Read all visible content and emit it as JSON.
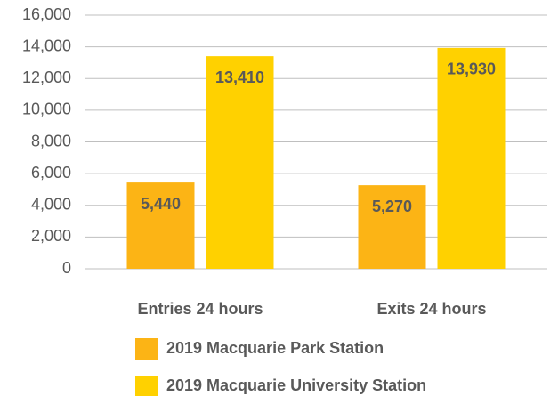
{
  "chart_data": {
    "type": "bar",
    "categories": [
      "Entries 24 hours",
      "Exits 24 hours"
    ],
    "series": [
      {
        "name": "2019 Macquarie Park Station",
        "color": "#fcb415",
        "values": [
          5440,
          5270
        ],
        "value_labels": [
          "5,440",
          "5,270"
        ]
      },
      {
        "name": "2019 Macquarie University Station",
        "color": "#ffd100",
        "values": [
          13410,
          13930
        ],
        "value_labels": [
          "13,410",
          "13,930"
        ]
      }
    ],
    "ylim": [
      0,
      16000
    ],
    "yticks": [
      0,
      {
        "value": 2000,
        "label": "2,000"
      },
      {
        "value": 4000,
        "label": "4,000"
      },
      {
        "value": 6000,
        "label": "6,000"
      },
      {
        "value": 8000,
        "label": "8,000"
      },
      {
        "value": 10000,
        "label": "10,000"
      },
      {
        "value": 12000,
        "label": "12,000"
      },
      {
        "value": 14000,
        "label": "14,000"
      },
      {
        "value": 16000,
        "label": "16,000"
      }
    ],
    "grid": true,
    "legend": "bottom"
  }
}
